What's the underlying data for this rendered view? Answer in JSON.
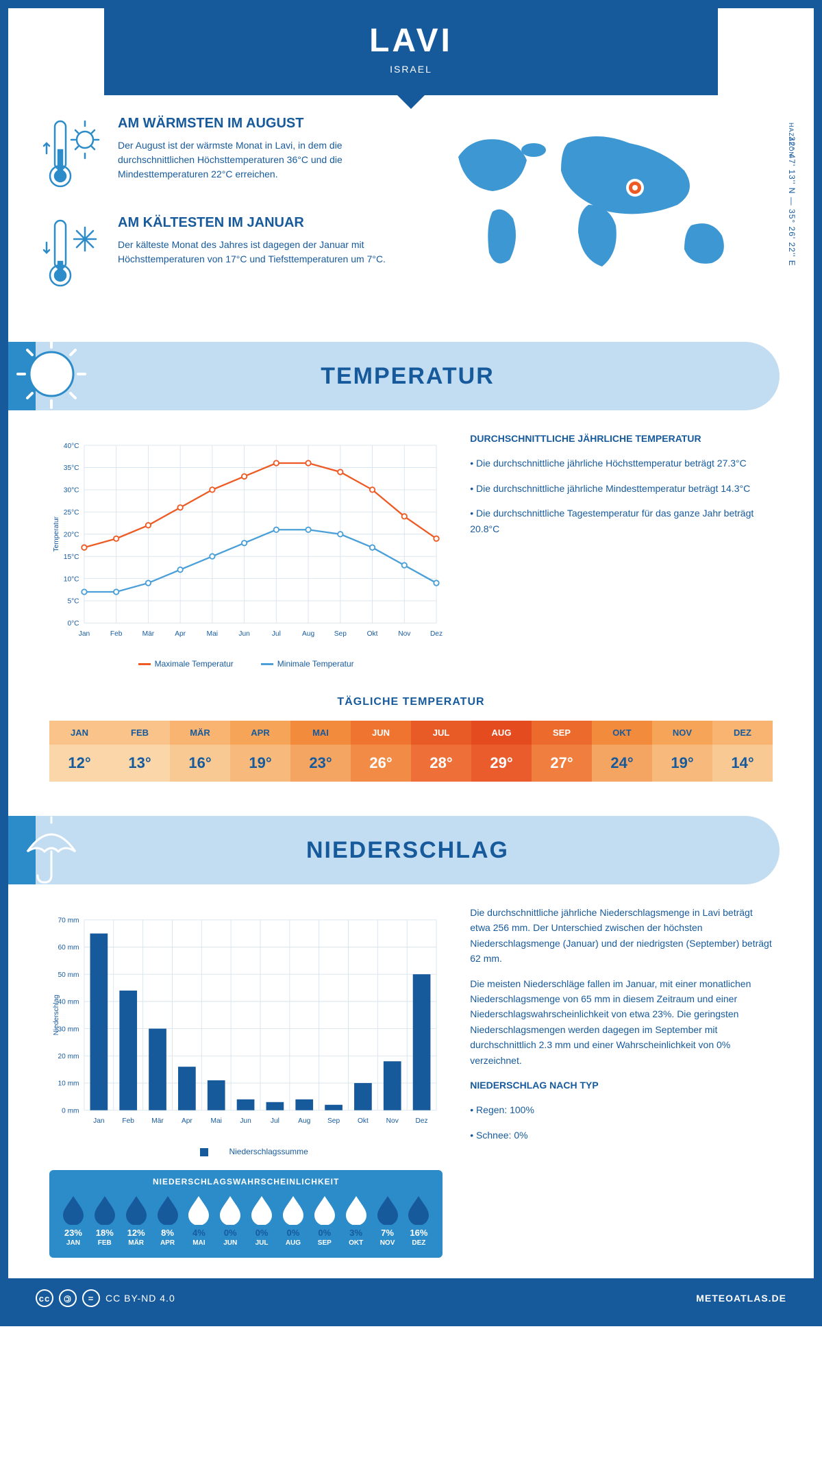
{
  "header": {
    "city": "LAVI",
    "country": "ISRAEL"
  },
  "location": {
    "coords": "32° 47' 13'' N — 35° 26' 22'' E",
    "division": "HAZAFON"
  },
  "warmest": {
    "title": "AM WÄRMSTEN IM AUGUST",
    "text": "Der August ist der wärmste Monat in Lavi, in dem die durchschnittlichen Höchsttemperaturen 36°C und die Mindesttemperaturen 22°C erreichen."
  },
  "coldest": {
    "title": "AM KÄLTESTEN IM JANUAR",
    "text": "Der kälteste Monat des Jahres ist dagegen der Januar mit Höchsttemperaturen von 17°C und Tiefsttemperaturen um 7°C."
  },
  "section_temp": "TEMPERATUR",
  "section_precip": "NIEDERSCHLAG",
  "temp_chart": {
    "months": [
      "Jan",
      "Feb",
      "Mär",
      "Apr",
      "Mai",
      "Jun",
      "Jul",
      "Aug",
      "Sep",
      "Okt",
      "Nov",
      "Dez"
    ],
    "max": [
      17,
      19,
      22,
      26,
      30,
      33,
      36,
      36,
      34,
      30,
      24,
      19
    ],
    "min": [
      7,
      7,
      9,
      12,
      15,
      18,
      21,
      21,
      20,
      17,
      13,
      9
    ],
    "y_ticks": [
      0,
      5,
      10,
      15,
      20,
      25,
      30,
      35,
      40
    ],
    "ylabel": "Temperatur",
    "max_color": "#ee5a24",
    "min_color": "#4a9fd8",
    "grid_color": "#d8e4ee",
    "legend_max": "Maximale Temperatur",
    "legend_min": "Minimale Temperatur"
  },
  "temp_stats": {
    "heading": "DURCHSCHNITTLICHE JÄHRLICHE TEMPERATUR",
    "bullets": [
      "• Die durchschnittliche jährliche Höchsttemperatur beträgt 27.3°C",
      "• Die durchschnittliche jährliche Mindesttemperatur beträgt 14.3°C",
      "• Die durchschnittliche Tagestemperatur für das ganze Jahr beträgt 20.8°C"
    ]
  },
  "daily_temp": {
    "title": "TÄGLICHE TEMPERATUR",
    "months": [
      "JAN",
      "FEB",
      "MÄR",
      "APR",
      "MAI",
      "JUN",
      "JUL",
      "AUG",
      "SEP",
      "OKT",
      "NOV",
      "DEZ"
    ],
    "values": [
      "12°",
      "13°",
      "16°",
      "19°",
      "23°",
      "26°",
      "28°",
      "29°",
      "27°",
      "24°",
      "19°",
      "14°"
    ],
    "header_colors": [
      "#f9c389",
      "#f9c389",
      "#f8b470",
      "#f6a458",
      "#f28b3c",
      "#ef7430",
      "#e85b26",
      "#e44b1f",
      "#ec6a2b",
      "#f28b3c",
      "#f6a458",
      "#f8b470"
    ],
    "value_colors": [
      "#fad6a8",
      "#fad6a8",
      "#f9c994",
      "#f7ba7c",
      "#f5a562",
      "#f28b46",
      "#ee7038",
      "#ea5c2c",
      "#f07e3e",
      "#f5a562",
      "#f7ba7c",
      "#f9c994"
    ],
    "text_color": "#165a9c",
    "hot_text": "#fff"
  },
  "precip_chart": {
    "months": [
      "Jan",
      "Feb",
      "Mär",
      "Apr",
      "Mai",
      "Jun",
      "Jul",
      "Aug",
      "Sep",
      "Okt",
      "Nov",
      "Dez"
    ],
    "values": [
      65,
      44,
      30,
      16,
      11,
      4,
      3,
      4,
      2,
      10,
      18,
      50
    ],
    "y_ticks": [
      0,
      10,
      20,
      30,
      40,
      50,
      60,
      70
    ],
    "ylabel": "Niederschlag",
    "bar_color": "#165a9c",
    "grid_color": "#d8e4ee",
    "legend": "Niederschlagssumme"
  },
  "precip_text": {
    "p1": "Die durchschnittliche jährliche Niederschlagsmenge in Lavi beträgt etwa 256 mm. Der Unterschied zwischen der höchsten Niederschlagsmenge (Januar) und der niedrigsten (September) beträgt 62 mm.",
    "p2": "Die meisten Niederschläge fallen im Januar, mit einer monatlichen Niederschlagsmenge von 65 mm in diesem Zeitraum und einer Niederschlagswahrscheinlichkeit von etwa 23%. Die geringsten Niederschlagsmengen werden dagegen im September mit durchschnittlich 2.3 mm und einer Wahrscheinlichkeit von 0% verzeichnet.",
    "type_head": "NIEDERSCHLAG NACH TYP",
    "type1": "• Regen: 100%",
    "type2": "• Schnee: 0%"
  },
  "prob": {
    "title": "NIEDERSCHLAGSWAHRSCHEINLICHKEIT",
    "months": [
      "JAN",
      "FEB",
      "MÄR",
      "APR",
      "MAI",
      "JUN",
      "JUL",
      "AUG",
      "SEP",
      "OKT",
      "NOV",
      "DEZ"
    ],
    "values": [
      "23%",
      "18%",
      "12%",
      "8%",
      "4%",
      "0%",
      "0%",
      "0%",
      "0%",
      "3%",
      "7%",
      "16%"
    ],
    "filled": [
      true,
      true,
      true,
      true,
      false,
      false,
      false,
      false,
      false,
      false,
      true,
      true
    ]
  },
  "footer": {
    "license": "CC BY-ND 4.0",
    "site": "METEOATLAS.DE"
  }
}
